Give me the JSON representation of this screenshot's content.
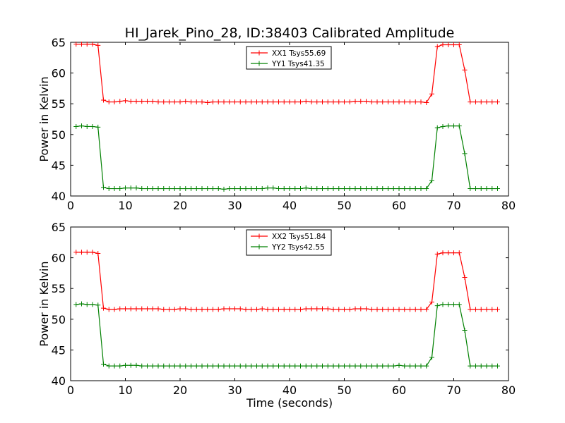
{
  "figure": {
    "title": "HI_Jarek_Pino_28, ID:38403 Calibrated Amplitude",
    "xlabel": "Time (seconds)"
  },
  "chart_data": [
    {
      "type": "line",
      "title": "HI_Jarek_Pino_28, ID:38403 Calibrated Amplitude",
      "xlabel": "",
      "ylabel": "Power in Kelvin",
      "xlim": [
        0,
        80
      ],
      "ylim": [
        40,
        65
      ],
      "xticks": [
        0,
        10,
        20,
        30,
        40,
        50,
        60,
        70,
        80
      ],
      "yticks": [
        40,
        45,
        50,
        55,
        60,
        65
      ],
      "grid": false,
      "legend_position": "top-center",
      "x": [
        1,
        2,
        3,
        4,
        5,
        6,
        7,
        8,
        9,
        10,
        11,
        12,
        13,
        14,
        15,
        16,
        17,
        18,
        19,
        20,
        21,
        22,
        23,
        24,
        25,
        26,
        27,
        28,
        29,
        30,
        31,
        32,
        33,
        34,
        35,
        36,
        37,
        38,
        39,
        40,
        41,
        42,
        43,
        44,
        45,
        46,
        47,
        48,
        49,
        50,
        51,
        52,
        53,
        54,
        55,
        56,
        57,
        58,
        59,
        60,
        61,
        62,
        63,
        64,
        65,
        66,
        67,
        68,
        69,
        70,
        71,
        72,
        73,
        74,
        75,
        76,
        77,
        78
      ],
      "series": [
        {
          "name": "XX1 Tsys55.69",
          "color": "#ff0000",
          "values": [
            64.7,
            64.7,
            64.7,
            64.7,
            64.5,
            55.6,
            55.3,
            55.3,
            55.4,
            55.5,
            55.4,
            55.4,
            55.4,
            55.4,
            55.4,
            55.3,
            55.3,
            55.3,
            55.3,
            55.3,
            55.4,
            55.3,
            55.3,
            55.3,
            55.2,
            55.3,
            55.3,
            55.3,
            55.3,
            55.3,
            55.3,
            55.3,
            55.3,
            55.3,
            55.3,
            55.3,
            55.3,
            55.3,
            55.3,
            55.3,
            55.3,
            55.3,
            55.4,
            55.3,
            55.3,
            55.3,
            55.3,
            55.3,
            55.3,
            55.3,
            55.3,
            55.4,
            55.4,
            55.4,
            55.3,
            55.3,
            55.3,
            55.3,
            55.3,
            55.3,
            55.3,
            55.3,
            55.3,
            55.3,
            55.2,
            56.6,
            64.3,
            64.6,
            64.6,
            64.6,
            64.6,
            60.5,
            55.3,
            55.3,
            55.3,
            55.3,
            55.3,
            55.3
          ]
        },
        {
          "name": "YY1 Tsys41.35",
          "color": "#008000",
          "values": [
            51.3,
            51.4,
            51.3,
            51.3,
            51.2,
            41.4,
            41.2,
            41.2,
            41.2,
            41.3,
            41.3,
            41.3,
            41.2,
            41.2,
            41.2,
            41.2,
            41.2,
            41.2,
            41.2,
            41.2,
            41.2,
            41.2,
            41.2,
            41.2,
            41.2,
            41.2,
            41.2,
            41.1,
            41.2,
            41.2,
            41.2,
            41.2,
            41.2,
            41.2,
            41.2,
            41.3,
            41.3,
            41.2,
            41.2,
            41.2,
            41.2,
            41.2,
            41.3,
            41.2,
            41.2,
            41.2,
            41.2,
            41.2,
            41.2,
            41.2,
            41.2,
            41.2,
            41.2,
            41.2,
            41.2,
            41.2,
            41.2,
            41.2,
            41.2,
            41.2,
            41.2,
            41.2,
            41.2,
            41.2,
            41.2,
            42.5,
            51.1,
            51.3,
            51.4,
            51.4,
            51.4,
            46.9,
            41.2,
            41.2,
            41.2,
            41.2,
            41.2,
            41.2
          ]
        }
      ]
    },
    {
      "type": "line",
      "title": "",
      "xlabel": "Time (seconds)",
      "ylabel": "Power in Kelvin",
      "xlim": [
        0,
        80
      ],
      "ylim": [
        40,
        65
      ],
      "xticks": [
        0,
        10,
        20,
        30,
        40,
        50,
        60,
        70,
        80
      ],
      "yticks": [
        40,
        45,
        50,
        55,
        60,
        65
      ],
      "grid": false,
      "legend_position": "top-center",
      "x": [
        1,
        2,
        3,
        4,
        5,
        6,
        7,
        8,
        9,
        10,
        11,
        12,
        13,
        14,
        15,
        16,
        17,
        18,
        19,
        20,
        21,
        22,
        23,
        24,
        25,
        26,
        27,
        28,
        29,
        30,
        31,
        32,
        33,
        34,
        35,
        36,
        37,
        38,
        39,
        40,
        41,
        42,
        43,
        44,
        45,
        46,
        47,
        48,
        49,
        50,
        51,
        52,
        53,
        54,
        55,
        56,
        57,
        58,
        59,
        60,
        61,
        62,
        63,
        64,
        65,
        66,
        67,
        68,
        69,
        70,
        71,
        72,
        73,
        74,
        75,
        76,
        77,
        78
      ],
      "series": [
        {
          "name": "XX2 Tsys51.84",
          "color": "#ff0000",
          "values": [
            60.9,
            60.9,
            60.9,
            60.9,
            60.7,
            51.8,
            51.6,
            51.6,
            51.7,
            51.7,
            51.7,
            51.7,
            51.7,
            51.7,
            51.7,
            51.7,
            51.6,
            51.6,
            51.6,
            51.7,
            51.7,
            51.6,
            51.6,
            51.6,
            51.6,
            51.6,
            51.6,
            51.7,
            51.7,
            51.7,
            51.7,
            51.6,
            51.6,
            51.6,
            51.7,
            51.6,
            51.6,
            51.6,
            51.6,
            51.6,
            51.6,
            51.6,
            51.7,
            51.7,
            51.7,
            51.7,
            51.7,
            51.6,
            51.6,
            51.6,
            51.6,
            51.7,
            51.7,
            51.7,
            51.6,
            51.6,
            51.6,
            51.6,
            51.6,
            51.6,
            51.6,
            51.6,
            51.6,
            51.6,
            51.6,
            52.8,
            60.6,
            60.8,
            60.8,
            60.8,
            60.8,
            56.8,
            51.6,
            51.6,
            51.6,
            51.6,
            51.6,
            51.6
          ]
        },
        {
          "name": "YY2 Tsys42.55",
          "color": "#008000",
          "values": [
            52.4,
            52.5,
            52.4,
            52.4,
            52.3,
            42.7,
            42.4,
            42.4,
            42.4,
            42.5,
            42.5,
            42.5,
            42.4,
            42.4,
            42.4,
            42.4,
            42.4,
            42.4,
            42.4,
            42.4,
            42.4,
            42.4,
            42.4,
            42.4,
            42.4,
            42.4,
            42.4,
            42.4,
            42.4,
            42.4,
            42.4,
            42.4,
            42.4,
            42.4,
            42.4,
            42.4,
            42.4,
            42.4,
            42.4,
            42.4,
            42.4,
            42.4,
            42.4,
            42.4,
            42.4,
            42.4,
            42.4,
            42.4,
            42.4,
            42.4,
            42.4,
            42.4,
            42.4,
            42.4,
            42.4,
            42.4,
            42.4,
            42.4,
            42.4,
            42.5,
            42.4,
            42.4,
            42.4,
            42.4,
            42.4,
            43.8,
            52.2,
            52.4,
            52.4,
            52.4,
            52.4,
            48.2,
            42.4,
            42.4,
            42.4,
            42.4,
            42.4,
            42.4
          ]
        }
      ]
    }
  ]
}
